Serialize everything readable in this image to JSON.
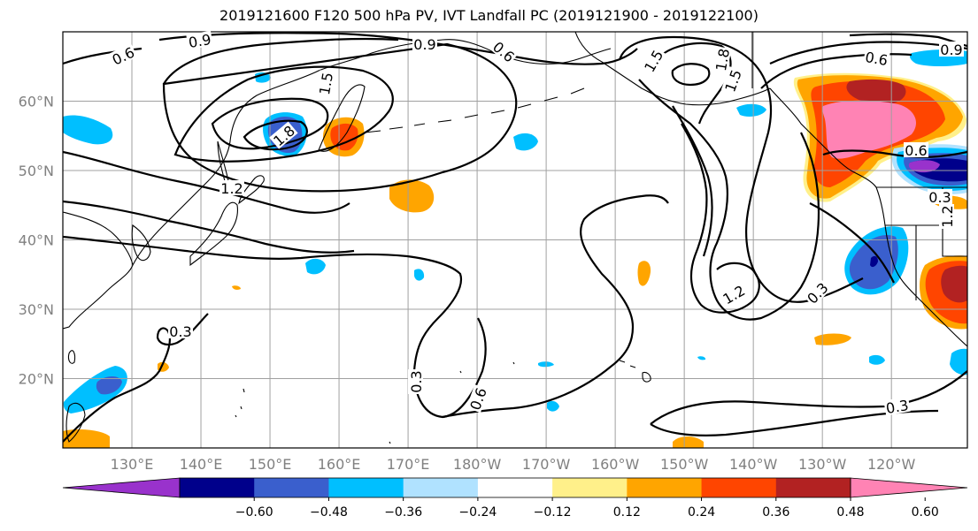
{
  "title": "2019121600 F120 500 hPa PV, IVT Landfall PC (2019121900 - 2019122100)",
  "lat_labels": [
    "60°N",
    "50°N",
    "40°N",
    "30°N",
    "20°N"
  ],
  "lon_labels": [
    "130°E",
    "140°E",
    "150°E",
    "160°E",
    "170°E",
    "180°W",
    "170°W",
    "160°W",
    "150°W",
    "140°W",
    "130°W",
    "120°W"
  ],
  "contour_labels": [
    "0.6",
    "0.9",
    "0.9",
    "0.6",
    "1.5",
    "1.8",
    "1.5",
    "1.8",
    "1.2",
    "1.5",
    "0.6",
    "0.9",
    "1.2",
    "0.6",
    "0.3",
    "0.3",
    "0.3",
    "0.6",
    "1.2",
    "0.3",
    "0.3"
  ],
  "colorbar": {
    "colors": [
      "#9932cc",
      "#00008b",
      "#3a5fcd",
      "#00bfff",
      "#b0e2ff",
      "#ffffff",
      "#fff08a",
      "#ffa500",
      "#ff4500",
      "#b22222",
      "#ff83b4"
    ],
    "tick_labels": [
      "−0.60",
      "−0.48",
      "−0.36",
      "−0.24",
      "−0.12",
      "0.12",
      "0.24",
      "0.36",
      "0.48",
      "0.60"
    ]
  },
  "map_data": {
    "projection": "PlateCarree",
    "lon_range": [
      120,
      251
    ],
    "lat_range": [
      10,
      70
    ],
    "gridline_lons": [
      130,
      140,
      150,
      160,
      170,
      180,
      190,
      200,
      210,
      220,
      230,
      240
    ],
    "gridline_lats": [
      20,
      30,
      40,
      50,
      60
    ],
    "contour_levels": [
      0.3,
      0.6,
      0.9,
      1.2,
      1.5,
      1.8
    ],
    "fill_levels": [
      -0.6,
      -0.48,
      -0.36,
      -0.24,
      -0.12,
      0.12,
      0.24,
      0.36,
      0.48,
      0.6
    ]
  }
}
